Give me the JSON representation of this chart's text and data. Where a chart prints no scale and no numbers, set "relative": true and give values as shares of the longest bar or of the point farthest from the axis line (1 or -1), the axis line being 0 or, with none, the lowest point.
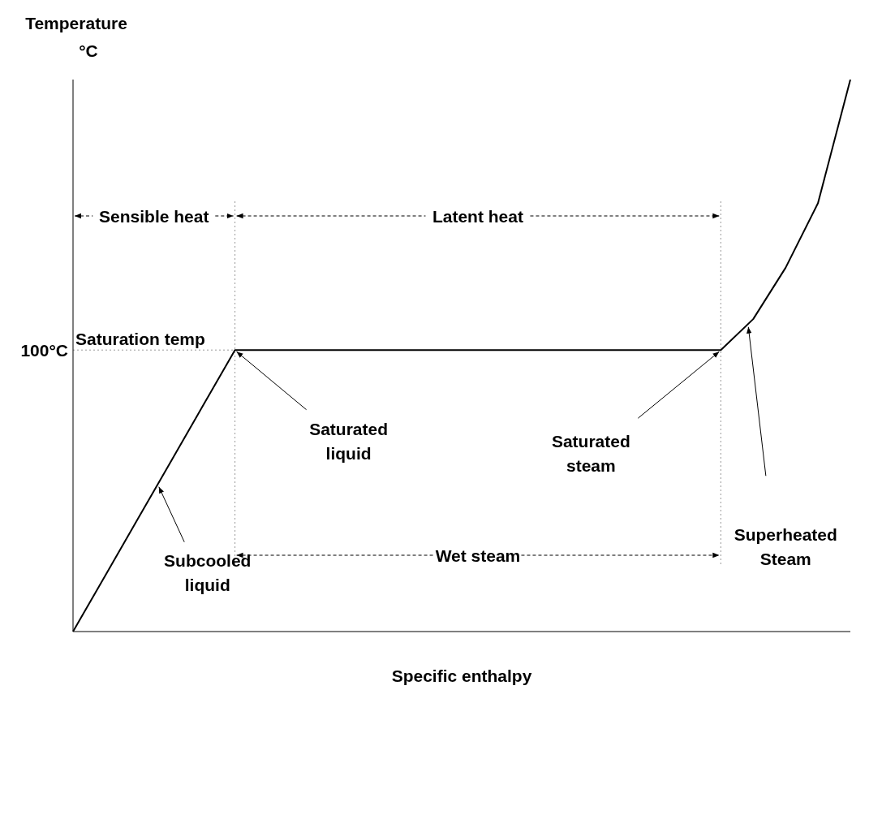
{
  "chart_data": {
    "type": "line",
    "relative": true,
    "xlabel": "Specific enthalpy",
    "ylabel": "Temperature °C",
    "marker": "none",
    "line_style": "solid",
    "categories": [
      null,
      null,
      null,
      null,
      null,
      null,
      null,
      null,
      null,
      null,
      null,
      null,
      null,
      null,
      null,
      null,
      null,
      null,
      null,
      null,
      null,
      null,
      null,
      null,
      null
    ],
    "series": [
      {
        "color": "#000000",
        "values": [
          0,
          0.102,
          0.204,
          0.306,
          0.408,
          0.51,
          0.51,
          0.51,
          0.51,
          0.51,
          0.51,
          0.51,
          0.51,
          0.51,
          0.51,
          0.51,
          0.51,
          0.51,
          0.51,
          0.51,
          0.51,
          0.566,
          0.659,
          0.776,
          1.0
        ]
      }
    ],
    "ref_lines": [
      {
        "axis": "y",
        "value": 0.51,
        "label": "Saturation temp",
        "line_style": "dotted",
        "color": "#999999"
      }
    ],
    "annotations": [
      "Sensible heat",
      "Latent heat",
      "Wet steam",
      "100°C",
      "Saturated liquid",
      "Saturated steam",
      "Superheated Steam",
      "Subcooled liquid"
    ]
  }
}
